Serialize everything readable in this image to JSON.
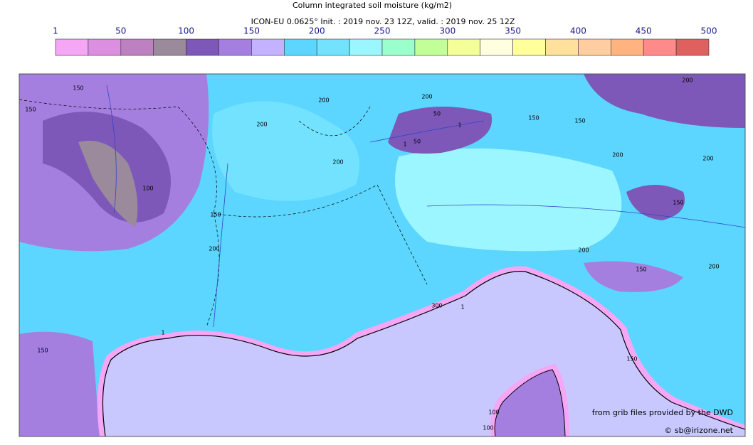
{
  "title": "Column integrated soil moisture (kg/m2)",
  "subtitle": "ICON-EU 0.0625° Init. : 2019 nov. 23 12Z, valid. : 2019 nov. 25 12Z",
  "colorbar": {
    "ticks": [
      1,
      50,
      100,
      150,
      200,
      250,
      300,
      350,
      400,
      450,
      500
    ],
    "colors": [
      "#f5a6f5",
      "#dc8fe0",
      "#bd80c0",
      "#9a8a9c",
      "#7d58b8",
      "#a47fe0",
      "#c3b3ff",
      "#5cd5ff",
      "#72e2ff",
      "#9cf6ff",
      "#9affcc",
      "#c2ff99",
      "#f5ff99",
      "#ffffe0",
      "#ffff9c",
      "#ffe09c",
      "#ffcda0",
      "#ffb380",
      "#ff8a8a",
      "#e06060"
    ]
  },
  "contour_labels": [
    "150",
    "150",
    "200",
    "200",
    "100",
    "150",
    "200",
    "200",
    "200",
    "150",
    "200",
    "150",
    "1",
    "50",
    "50",
    "1",
    "150",
    "200",
    "200",
    "150",
    "200",
    "200",
    "300",
    "1",
    "1",
    "150",
    "150",
    "100",
    "100"
  ],
  "credits": [
    "from grib files provided by the DWD",
    "© sb@irizone.net"
  ]
}
